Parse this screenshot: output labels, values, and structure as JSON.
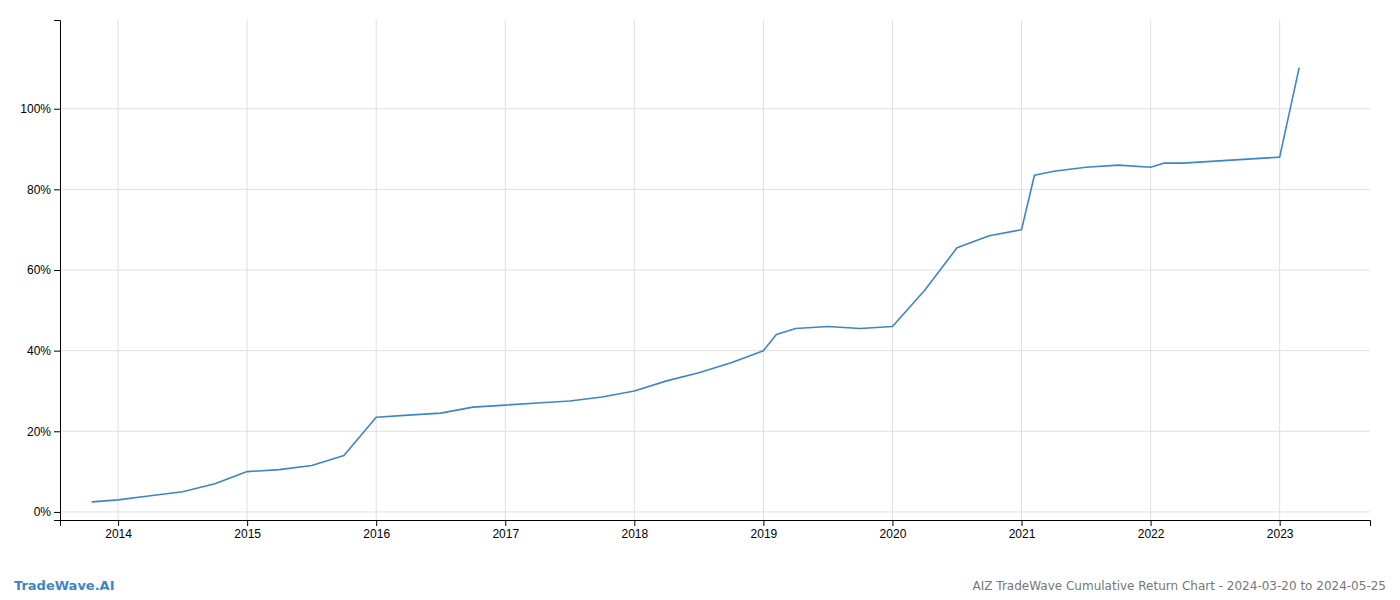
{
  "chart_data": {
    "type": "line",
    "title": "AIZ TradeWave Cumulative Return Chart - 2024-03-20 to 2024-05-25",
    "annotations": [
      "TradeWave.AI"
    ],
    "color": "#3d85c8",
    "x": [
      2013.8,
      2014.0,
      2014.25,
      2014.5,
      2014.75,
      2015.0,
      2015.25,
      2015.5,
      2015.75,
      2016.0,
      2016.25,
      2016.5,
      2016.75,
      2017.0,
      2017.25,
      2017.5,
      2017.75,
      2018.0,
      2018.25,
      2018.5,
      2018.75,
      2019.0,
      2019.1,
      2019.25,
      2019.5,
      2019.75,
      2020.0,
      2020.25,
      2020.5,
      2020.75,
      2021.0,
      2021.1,
      2021.25,
      2021.5,
      2021.75,
      2022.0,
      2022.1,
      2022.25,
      2022.5,
      2022.75,
      2023.0,
      2023.15
    ],
    "values": [
      0.025,
      0.03,
      0.04,
      0.05,
      0.07,
      0.1,
      0.105,
      0.115,
      0.14,
      0.235,
      0.24,
      0.245,
      0.26,
      0.265,
      0.27,
      0.275,
      0.285,
      0.3,
      0.325,
      0.345,
      0.37,
      0.4,
      0.44,
      0.455,
      0.46,
      0.455,
      0.46,
      0.55,
      0.655,
      0.685,
      0.7,
      0.835,
      0.845,
      0.855,
      0.86,
      0.855,
      0.865,
      0.865,
      0.87,
      0.875,
      0.88,
      1.1
    ],
    "xlim": [
      2013.55,
      2023.7
    ],
    "ylim": [
      -0.02,
      1.22
    ],
    "xticks": [
      2014,
      2015,
      2016,
      2017,
      2018,
      2019,
      2020,
      2021,
      2022,
      2023
    ],
    "yticks": [
      {
        "value": 0.0,
        "label": "0%"
      },
      {
        "value": 0.2,
        "label": "20%"
      },
      {
        "value": 0.4,
        "label": "40%"
      },
      {
        "value": 0.6,
        "label": "60%"
      },
      {
        "value": 0.8,
        "label": "80%"
      },
      {
        "value": 1.0,
        "label": "100%"
      }
    ],
    "grid": true
  }
}
